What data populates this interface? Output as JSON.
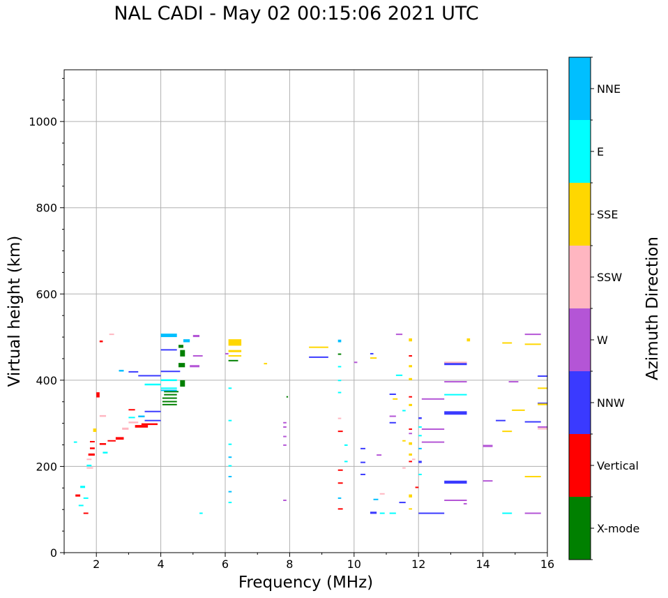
{
  "chart_data": {
    "type": "scatter",
    "title": "NAL CADI - May 02 00:15:06 2021 UTC",
    "xlabel": "Frequency (MHz)",
    "ylabel": "Virtual height (km)",
    "xlim": [
      1,
      16
    ],
    "ylim": [
      0,
      1120
    ],
    "xticks": [
      "2",
      "4",
      "6",
      "8",
      "10",
      "12",
      "14",
      "16"
    ],
    "yticks": [
      "0",
      "200",
      "400",
      "600",
      "800",
      "1000"
    ],
    "grid": true,
    "colorbar": {
      "label": "Azimuth Direction",
      "categories": [
        {
          "name": "X-mode",
          "color": "#008000"
        },
        {
          "name": "Vertical",
          "color": "#ff0000"
        },
        {
          "name": "NNW",
          "color": "#3a3aff"
        },
        {
          "name": "W",
          "color": "#b455d6"
        },
        {
          "name": "SSW",
          "color": "#ffb6c1"
        },
        {
          "name": "SSE",
          "color": "#ffd700"
        },
        {
          "name": "E",
          "color": "#00ffff"
        },
        {
          "name": "NNE",
          "color": "#00bfff"
        }
      ]
    },
    "series": [
      {
        "name": "X-mode",
        "points": [
          [
            4.05,
            342,
            4.5,
            345
          ],
          [
            4.05,
            350,
            4.5,
            352
          ],
          [
            4.05,
            358,
            4.5,
            360
          ],
          [
            4.1,
            366,
            4.5,
            368
          ],
          [
            4.1,
            372,
            4.55,
            375
          ],
          [
            4.6,
            385,
            4.75,
            400
          ],
          [
            4.55,
            430,
            4.75,
            440
          ],
          [
            4.6,
            455,
            4.75,
            470
          ],
          [
            4.55,
            475,
            4.7,
            482
          ],
          [
            6.1,
            445,
            6.4,
            447
          ],
          [
            7.9,
            360,
            7.95,
            363
          ],
          [
            9.5,
            460,
            9.6,
            462
          ]
        ]
      },
      {
        "name": "Vertical",
        "points": [
          [
            1.35,
            130,
            1.5,
            135
          ],
          [
            1.6,
            90,
            1.75,
            93
          ],
          [
            1.75,
            225,
            1.95,
            230
          ],
          [
            1.8,
            240,
            1.95,
            244
          ],
          [
            1.8,
            256,
            1.95,
            259
          ],
          [
            2.0,
            360,
            2.1,
            372
          ],
          [
            2.1,
            250,
            2.3,
            254
          ],
          [
            2.35,
            258,
            2.6,
            261
          ],
          [
            2.6,
            262,
            2.85,
            268
          ],
          [
            3.0,
            330,
            3.2,
            333
          ],
          [
            3.2,
            290,
            3.6,
            296
          ],
          [
            3.4,
            296,
            3.9,
            300
          ],
          [
            9.5,
            280,
            9.65,
            283
          ],
          [
            9.5,
            160,
            9.65,
            163
          ],
          [
            9.5,
            190,
            9.65,
            193
          ],
          [
            9.5,
            100,
            9.65,
            103
          ],
          [
            11.7,
            285,
            11.8,
            288
          ],
          [
            11.7,
            360,
            11.8,
            363
          ],
          [
            11.7,
            210,
            11.8,
            213
          ],
          [
            11.9,
            150,
            12.0,
            153
          ],
          [
            11.7,
            455,
            11.8,
            458
          ],
          [
            2.1,
            488,
            2.2,
            492
          ]
        ]
      },
      {
        "name": "NNW",
        "points": [
          [
            3.3,
            410,
            4.0,
            412
          ],
          [
            3.0,
            418,
            3.3,
            421
          ],
          [
            3.5,
            326,
            4.0,
            329
          ],
          [
            3.5,
            305,
            4.0,
            308
          ],
          [
            4.0,
            470,
            4.5,
            472
          ],
          [
            4.0,
            420,
            4.6,
            422
          ],
          [
            8.6,
            452,
            9.2,
            455
          ],
          [
            10.5,
            460,
            10.6,
            463
          ],
          [
            10.2,
            240,
            10.35,
            243
          ],
          [
            10.2,
            208,
            10.35,
            211
          ],
          [
            10.2,
            180,
            10.35,
            183
          ],
          [
            11.1,
            366,
            11.3,
            369
          ],
          [
            11.1,
            300,
            11.3,
            303
          ],
          [
            11.4,
            115,
            11.6,
            118
          ],
          [
            12.0,
            90,
            12.8,
            93
          ],
          [
            12.8,
            435,
            13.5,
            442
          ],
          [
            12.8,
            320,
            13.5,
            328
          ],
          [
            12.8,
            160,
            13.5,
            167
          ],
          [
            14.4,
            305,
            14.7,
            308
          ],
          [
            15.3,
            302,
            15.8,
            305
          ],
          [
            15.7,
            408,
            16.0,
            411
          ],
          [
            15.7,
            345,
            16.0,
            348
          ],
          [
            12.0,
            208,
            12.1,
            213
          ],
          [
            12.0,
            310,
            12.1,
            314
          ],
          [
            10.5,
            90,
            10.7,
            95
          ]
        ]
      },
      {
        "name": "W",
        "points": [
          [
            4.9,
            430,
            5.2,
            435
          ],
          [
            5.0,
            455,
            5.3,
            458
          ],
          [
            5.0,
            500,
            5.2,
            505
          ],
          [
            6.0,
            460,
            6.1,
            463
          ],
          [
            7.8,
            300,
            7.9,
            303
          ],
          [
            7.8,
            290,
            7.9,
            293
          ],
          [
            7.8,
            268,
            7.9,
            271
          ],
          [
            7.8,
            248,
            7.9,
            251
          ],
          [
            7.8,
            120,
            7.9,
            123
          ],
          [
            10.0,
            440,
            10.1,
            443
          ],
          [
            11.1,
            315,
            11.3,
            318
          ],
          [
            11.3,
            505,
            11.5,
            508
          ],
          [
            12.1,
            355,
            12.8,
            358
          ],
          [
            12.1,
            285,
            12.8,
            288
          ],
          [
            12.1,
            255,
            12.8,
            258
          ],
          [
            12.8,
            395,
            13.5,
            398
          ],
          [
            12.8,
            120,
            13.5,
            123
          ],
          [
            14.0,
            245,
            14.3,
            250
          ],
          [
            14.0,
            165,
            14.3,
            168
          ],
          [
            14.8,
            395,
            15.1,
            398
          ],
          [
            15.3,
            505,
            15.8,
            508
          ],
          [
            15.3,
            90,
            15.8,
            93
          ],
          [
            15.7,
            290,
            16.0,
            293
          ],
          [
            11.7,
            275,
            11.8,
            278
          ],
          [
            10.7,
            225,
            10.85,
            228
          ],
          [
            13.4,
            112,
            13.5,
            115
          ]
        ]
      },
      {
        "name": "SSW",
        "points": [
          [
            1.7,
            215,
            1.85,
            218
          ],
          [
            1.7,
            195,
            1.9,
            198
          ],
          [
            2.1,
            315,
            2.3,
            319
          ],
          [
            2.8,
            285,
            3.0,
            290
          ],
          [
            3.0,
            300,
            3.3,
            304
          ],
          [
            9.5,
            310,
            9.6,
            313
          ],
          [
            10.8,
            135,
            10.95,
            138
          ],
          [
            11.5,
            195,
            11.6,
            198
          ],
          [
            12.8,
            440,
            13.5,
            443
          ],
          [
            15.7,
            286,
            16.0,
            289
          ],
          [
            11.8,
            215,
            11.9,
            218
          ],
          [
            2.4,
            505,
            2.55,
            508
          ]
        ]
      },
      {
        "name": "SSE",
        "points": [
          [
            6.1,
            480,
            6.5,
            495
          ],
          [
            6.1,
            465,
            6.5,
            470
          ],
          [
            6.1,
            455,
            6.5,
            458
          ],
          [
            7.2,
            437,
            7.3,
            440
          ],
          [
            8.6,
            475,
            9.2,
            478
          ],
          [
            10.5,
            450,
            10.7,
            453
          ],
          [
            11.2,
            355,
            11.35,
            358
          ],
          [
            11.7,
            490,
            11.8,
            497
          ],
          [
            11.7,
            430,
            11.8,
            435
          ],
          [
            11.7,
            400,
            11.8,
            405
          ],
          [
            11.7,
            340,
            11.8,
            345
          ],
          [
            11.7,
            250,
            11.8,
            256
          ],
          [
            11.7,
            225,
            11.8,
            230
          ],
          [
            11.7,
            128,
            11.8,
            135
          ],
          [
            11.7,
            100,
            11.8,
            103
          ],
          [
            13.5,
            490,
            13.6,
            497
          ],
          [
            14.6,
            485,
            14.9,
            488
          ],
          [
            14.6,
            280,
            14.9,
            283
          ],
          [
            14.9,
            330,
            15.3,
            332
          ],
          [
            15.3,
            175,
            15.8,
            178
          ],
          [
            15.7,
            380,
            16.0,
            383
          ],
          [
            15.7,
            342,
            16.0,
            346
          ],
          [
            15.3,
            482,
            15.8,
            485
          ],
          [
            1.9,
            280,
            2.0,
            288
          ],
          [
            11.5,
            258,
            11.6,
            261
          ]
        ]
      },
      {
        "name": "E",
        "points": [
          [
            1.45,
            108,
            1.6,
            111
          ],
          [
            1.5,
            150,
            1.65,
            155
          ],
          [
            1.6,
            125,
            1.75,
            128
          ],
          [
            1.7,
            200,
            1.85,
            204
          ],
          [
            1.3,
            255,
            1.4,
            258
          ],
          [
            2.2,
            230,
            2.35,
            234
          ],
          [
            3.0,
            312,
            3.2,
            315
          ],
          [
            3.5,
            388,
            4.0,
            392
          ],
          [
            4.0,
            398,
            4.5,
            402
          ],
          [
            4.0,
            380,
            4.5,
            383
          ],
          [
            6.1,
            200,
            6.2,
            203
          ],
          [
            6.1,
            380,
            6.2,
            383
          ],
          [
            6.1,
            305,
            6.2,
            308
          ],
          [
            6.1,
            250,
            6.2,
            253
          ],
          [
            6.1,
            115,
            6.2,
            118
          ],
          [
            5.2,
            90,
            5.3,
            93
          ],
          [
            9.5,
            370,
            9.6,
            373
          ],
          [
            9.5,
            430,
            9.6,
            433
          ],
          [
            9.5,
            398,
            9.6,
            401
          ],
          [
            11.1,
            90,
            11.3,
            93
          ],
          [
            11.3,
            410,
            11.5,
            413
          ],
          [
            11.5,
            328,
            11.6,
            331
          ],
          [
            12.8,
            365,
            13.5,
            368
          ],
          [
            14.6,
            90,
            14.9,
            93
          ],
          [
            9.7,
            248,
            9.8,
            251
          ],
          [
            9.7,
            210,
            9.8,
            213
          ],
          [
            10.8,
            90,
            10.95,
            93
          ],
          [
            12.0,
            290,
            12.1,
            293
          ],
          [
            12.0,
            180,
            12.1,
            183
          ],
          [
            12.0,
            270,
            12.1,
            273
          ]
        ]
      },
      {
        "name": "NNE",
        "points": [
          [
            4.0,
            500,
            4.5,
            508
          ],
          [
            4.7,
            488,
            4.9,
            495
          ],
          [
            4.0,
            375,
            4.5,
            378
          ],
          [
            9.5,
            488,
            9.6,
            494
          ],
          [
            2.7,
            420,
            2.85,
            424
          ],
          [
            3.3,
            314,
            3.5,
            318
          ],
          [
            6.1,
            220,
            6.2,
            223
          ],
          [
            6.1,
            175,
            6.2,
            178
          ],
          [
            6.1,
            140,
            6.2,
            143
          ],
          [
            9.5,
            125,
            9.6,
            128
          ],
          [
            12.0,
            240,
            12.1,
            243
          ],
          [
            10.6,
            122,
            10.75,
            125
          ]
        ]
      }
    ]
  }
}
